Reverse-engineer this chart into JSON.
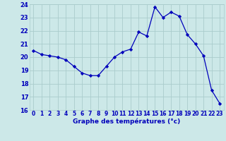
{
  "hours": [
    0,
    1,
    2,
    3,
    4,
    5,
    6,
    7,
    8,
    9,
    10,
    11,
    12,
    13,
    14,
    15,
    16,
    17,
    18,
    19,
    20,
    21,
    22,
    23
  ],
  "temperatures": [
    20.5,
    20.2,
    20.1,
    20.0,
    19.8,
    19.3,
    18.8,
    18.6,
    18.6,
    19.3,
    20.0,
    20.4,
    20.6,
    21.9,
    21.6,
    23.8,
    23.0,
    23.4,
    23.1,
    21.7,
    21.0,
    20.1,
    17.5,
    16.5
  ],
  "line_color": "#0000bb",
  "marker": "D",
  "marker_size": 2.2,
  "bg_color": "#cce8e8",
  "grid_color": "#aacccc",
  "axis_label_color": "#0000bb",
  "tick_color": "#0000bb",
  "xlabel": "Graphe des températures (°c)",
  "ylim": [
    16,
    24
  ],
  "xlim": [
    -0.5,
    23.5
  ],
  "yticks": [
    16,
    17,
    18,
    19,
    20,
    21,
    22,
    23,
    24
  ],
  "xticks": [
    0,
    1,
    2,
    3,
    4,
    5,
    6,
    7,
    8,
    9,
    10,
    11,
    12,
    13,
    14,
    15,
    16,
    17,
    18,
    19,
    20,
    21,
    22,
    23
  ],
  "tick_fontsize": 5.5,
  "ytick_fontsize": 6.0,
  "xlabel_fontsize": 6.5
}
